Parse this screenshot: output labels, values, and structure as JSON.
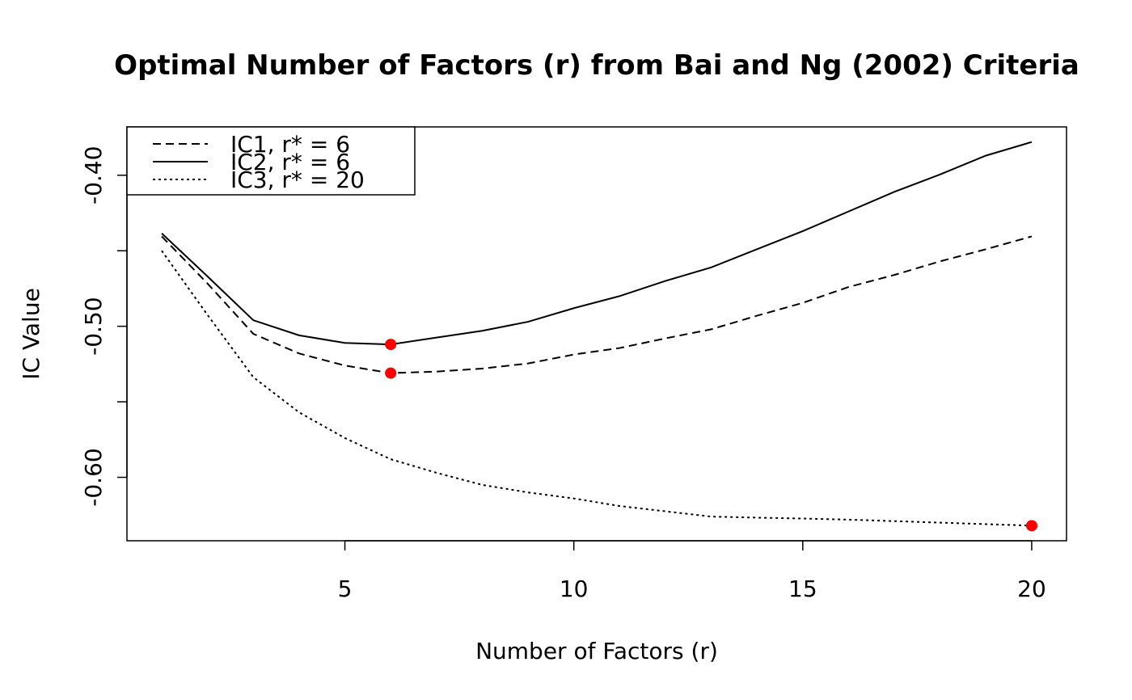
{
  "chart_data": {
    "type": "line",
    "title": "Optimal Number of Factors (r) from Bai and Ng (2002) Criteria",
    "x_label": "Number of Factors (r)",
    "y_label": "IC Value",
    "x": [
      1,
      2,
      3,
      4,
      5,
      6,
      7,
      8,
      9,
      10,
      11,
      12,
      13,
      14,
      15,
      16,
      17,
      18,
      19,
      20
    ],
    "series": [
      {
        "name": "IC1, r* = 6",
        "color": "#000000",
        "linestyle": "dashed",
        "values": [
          -0.4405,
          -0.4717,
          -0.505,
          -0.518,
          -0.526,
          -0.531,
          -0.53,
          -0.528,
          -0.5246,
          -0.5187,
          -0.5144,
          -0.508,
          -0.502,
          -0.493,
          -0.4845,
          -0.474,
          -0.466,
          -0.457,
          -0.449,
          -0.4405
        ]
      },
      {
        "name": "IC2, r* = 6",
        "color": "#000000",
        "linestyle": "solid",
        "values": [
          -0.4385,
          -0.467,
          -0.496,
          -0.506,
          -0.511,
          -0.512,
          -0.5075,
          -0.503,
          -0.497,
          -0.488,
          -0.48,
          -0.47,
          -0.461,
          -0.449,
          -0.437,
          -0.424,
          -0.411,
          -0.3995,
          -0.387,
          -0.378
        ]
      },
      {
        "name": "IC3, r* = 20",
        "color": "#000000",
        "linestyle": "dotted",
        "values": [
          -0.45,
          -0.4925,
          -0.5337,
          -0.557,
          -0.574,
          -0.588,
          -0.597,
          -0.605,
          -0.61,
          -0.614,
          -0.619,
          -0.6225,
          -0.626,
          -0.6267,
          -0.6273,
          -0.628,
          -0.629,
          -0.63,
          -0.631,
          -0.632
        ]
      }
    ],
    "mark_minimum": true,
    "marker_color": "#ff0000",
    "xlim": [
      0.24,
      20.76
    ],
    "ylim": [
      -0.642,
      -0.368
    ],
    "xticks": [
      5,
      10,
      15,
      20
    ],
    "yticks": [
      {
        "value": -0.4,
        "label": "-0.40"
      },
      {
        "value": -0.45
      },
      {
        "value": -0.5,
        "label": "-0.50"
      },
      {
        "value": -0.55
      },
      {
        "value": -0.6,
        "label": "-0.60"
      }
    ],
    "legend": "top-left",
    "grid": false
  }
}
